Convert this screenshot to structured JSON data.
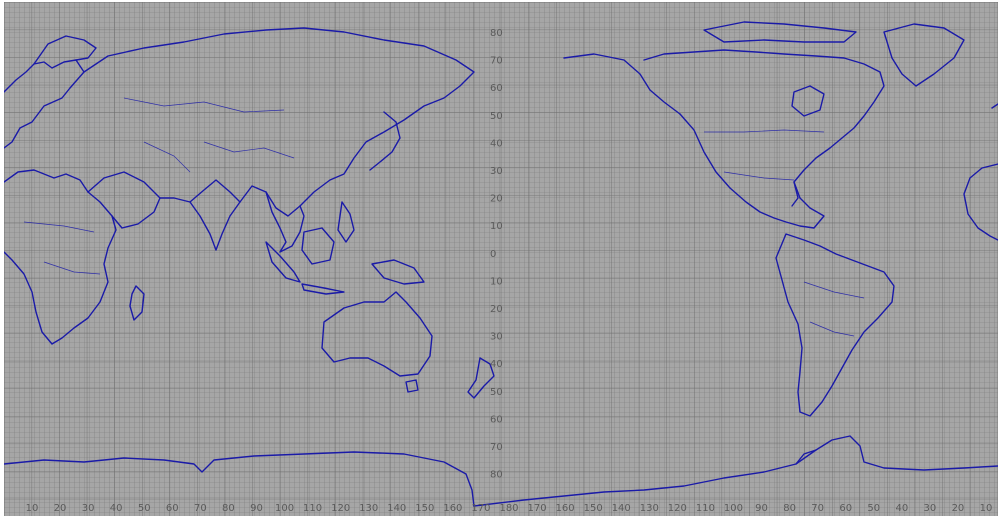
{
  "map": {
    "projection": "equirectangular",
    "center_longitude": 150,
    "grid_spacing_degrees": 1,
    "grid": true,
    "colors": {
      "background": "#a6a6a6",
      "grid_minor": "#7a7a7a",
      "grid_major": "#6a6a6a",
      "coastline": "#1a1aa8",
      "labels": "#5a5a5a"
    },
    "latitude_labels": [
      "80",
      "70",
      "60",
      "50",
      "40",
      "30",
      "20",
      "10",
      "0",
      "10",
      "20",
      "30",
      "40",
      "50",
      "60",
      "70",
      "80"
    ],
    "longitude_labels": [
      "10",
      "20",
      "30",
      "40",
      "50",
      "60",
      "70",
      "80",
      "90",
      "100",
      "110",
      "120",
      "130",
      "140",
      "150",
      "160",
      "170",
      "180",
      "170",
      "160",
      "150",
      "140",
      "130",
      "120",
      "110",
      "100",
      "90",
      "80",
      "70",
      "60",
      "50",
      "40",
      "30",
      "20",
      "10"
    ]
  }
}
